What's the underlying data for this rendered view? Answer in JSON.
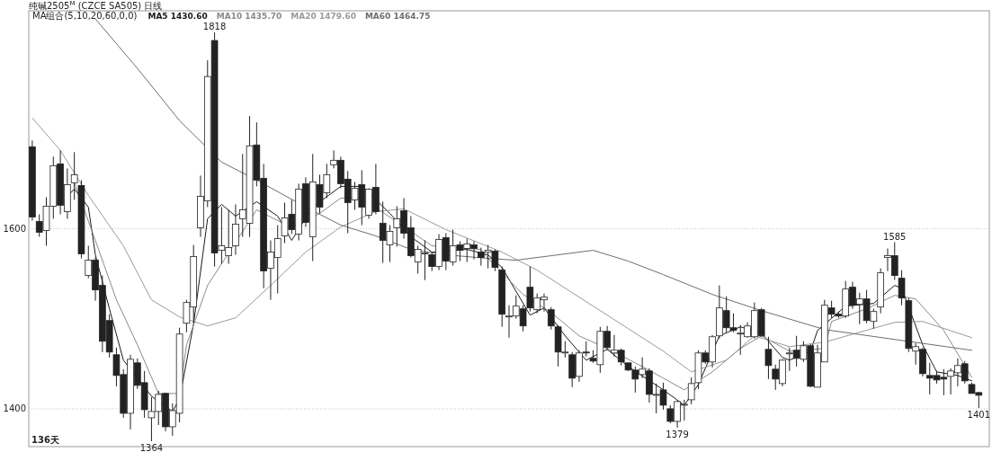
{
  "chart_data": {
    "type": "candlestick",
    "title": "纯碱2505$^{M}$ (CZCE SA505) 日线",
    "subtitle": "MA组合(5,10,20,60,0,0)",
    "categories": [
      null,
      null,
      null,
      null,
      null,
      null,
      null,
      null,
      null,
      null,
      null,
      null,
      null,
      null,
      null,
      null,
      null,
      null,
      null,
      null,
      null,
      null,
      null,
      null,
      null,
      null,
      null,
      null,
      null,
      null,
      null,
      null,
      null,
      null,
      null,
      null,
      null,
      null,
      null,
      null,
      null,
      null,
      null,
      null,
      null,
      null,
      null,
      null,
      null,
      null,
      null,
      null,
      null,
      null,
      null,
      null,
      null,
      null,
      null,
      null,
      null,
      null,
      null,
      null,
      null,
      null,
      null,
      null,
      null,
      null,
      null,
      null,
      null,
      null,
      null,
      null,
      null,
      null,
      null,
      null,
      null,
      null,
      null,
      null,
      null,
      null,
      null,
      null,
      null,
      null,
      null,
      null,
      null,
      null,
      null,
      null,
      null,
      null,
      null,
      null,
      null,
      null,
      null,
      null,
      null,
      null,
      null,
      null,
      null,
      null,
      null,
      null,
      null,
      null,
      null,
      null,
      null,
      null,
      null,
      null,
      null,
      null,
      null,
      null,
      null,
      null,
      null,
      null,
      null,
      null,
      null,
      null,
      null,
      null,
      null,
      null
    ],
    "ohlc": [
      [
        1691,
        1698,
        1609,
        1613
      ],
      [
        1608,
        1616,
        1591,
        1596
      ],
      [
        1598,
        1635,
        1581,
        1625
      ],
      [
        1625,
        1680,
        1611,
        1670
      ],
      [
        1672,
        1687,
        1616,
        1626
      ],
      [
        1619,
        1667,
        1611,
        1649
      ],
      [
        1651,
        1685,
        1632,
        1660
      ],
      [
        1648,
        1654,
        1567,
        1572
      ],
      [
        1548,
        1581,
        1545,
        1565
      ],
      [
        1565,
        1568,
        1520,
        1532
      ],
      [
        1537,
        1548,
        1463,
        1475
      ],
      [
        1498,
        1505,
        1457,
        1463
      ],
      [
        1460,
        1468,
        1425,
        1437
      ],
      [
        1438,
        1444,
        1390,
        1395
      ],
      [
        1395,
        1460,
        1377,
        1455
      ],
      [
        1451,
        1456,
        1422,
        1426
      ],
      [
        1429,
        1442,
        1390,
        1399
      ],
      [
        1390,
        1413,
        1364,
        1397
      ],
      [
        1397,
        1420,
        1382,
        1416
      ],
      [
        1417,
        1418,
        1375,
        1380
      ],
      [
        1380,
        1406,
        1370,
        1398
      ],
      [
        1395,
        1490,
        1385,
        1483
      ],
      [
        1495,
        1521,
        1485,
        1518
      ],
      [
        1513,
        1582,
        1495,
        1569
      ],
      [
        1601,
        1659,
        1591,
        1636
      ],
      [
        1631,
        1787,
        1624,
        1769
      ],
      [
        1809,
        1818,
        1558,
        1573
      ],
      [
        1576,
        1624,
        1561,
        1581
      ],
      [
        1570,
        1621,
        1561,
        1579
      ],
      [
        1581,
        1627,
        1571,
        1605
      ],
      [
        1611,
        1683,
        1591,
        1621
      ],
      [
        1606,
        1725,
        1591,
        1692
      ],
      [
        1693,
        1718,
        1647,
        1654
      ],
      [
        1656,
        1672,
        1534,
        1553
      ],
      [
        1556,
        1587,
        1521,
        1574
      ],
      [
        1568,
        1604,
        1528,
        1589
      ],
      [
        1592,
        1629,
        1584,
        1612
      ],
      [
        1616,
        1632,
        1594,
        1599
      ],
      [
        1594,
        1650,
        1587,
        1644
      ],
      [
        1650,
        1657,
        1602,
        1607
      ],
      [
        1591,
        1683,
        1564,
        1652
      ],
      [
        1649,
        1660,
        1617,
        1624
      ],
      [
        1640,
        1672,
        1634,
        1660
      ],
      [
        1671,
        1687,
        1667,
        1676
      ],
      [
        1676,
        1680,
        1645,
        1650
      ],
      [
        1655,
        1664,
        1595,
        1629
      ],
      [
        1632,
        1652,
        1621,
        1645
      ],
      [
        1649,
        1665,
        1604,
        1624
      ],
      [
        1615,
        1645,
        1611,
        1644
      ],
      [
        1646,
        1672,
        1616,
        1619
      ],
      [
        1606,
        1630,
        1562,
        1587
      ],
      [
        1582,
        1604,
        1563,
        1597
      ],
      [
        1601,
        1625,
        1580,
        1611
      ],
      [
        1620,
        1634,
        1589,
        1595
      ],
      [
        1601,
        1614,
        1568,
        1570
      ],
      [
        1563,
        1581,
        1550,
        1577
      ],
      [
        1572,
        1587,
        1543,
        1573
      ],
      [
        1571,
        1574,
        1553,
        1558
      ],
      [
        1558,
        1594,
        1554,
        1588
      ],
      [
        1590,
        1595,
        1554,
        1564
      ],
      [
        1563,
        1599,
        1559,
        1581
      ],
      [
        1582,
        1586,
        1564,
        1576
      ],
      [
        1578,
        1589,
        1563,
        1583
      ],
      [
        1582,
        1586,
        1566,
        1578
      ],
      [
        1574,
        1579,
        1559,
        1568
      ],
      [
        1574,
        1582,
        1556,
        1576
      ],
      [
        1575,
        1577,
        1553,
        1557
      ],
      [
        1554,
        1558,
        1491,
        1505
      ],
      [
        1503,
        1515,
        1479,
        1503
      ],
      [
        1503,
        1526,
        1500,
        1514
      ],
      [
        1511,
        1515,
        1486,
        1492
      ],
      [
        1535,
        1558,
        1508,
        1512
      ],
      [
        1510,
        1528,
        1506,
        1523
      ],
      [
        1521,
        1528,
        1508,
        1524
      ],
      [
        1510,
        1513,
        1488,
        1492
      ],
      [
        1491,
        1493,
        1447,
        1463
      ],
      [
        1463,
        1475,
        1457,
        1463
      ],
      [
        1460,
        1463,
        1424,
        1434
      ],
      [
        1436,
        1465,
        1430,
        1462
      ],
      [
        1463,
        1475,
        1458,
        1462
      ],
      [
        1456,
        1465,
        1451,
        1453
      ],
      [
        1449,
        1491,
        1440,
        1486
      ],
      [
        1486,
        1492,
        1465,
        1468
      ],
      [
        1462,
        1482,
        1458,
        1465
      ],
      [
        1465,
        1467,
        1448,
        1452
      ],
      [
        1451,
        1451,
        1442,
        1443
      ],
      [
        1443,
        1447,
        1418,
        1433
      ],
      [
        1438,
        1457,
        1434,
        1444
      ],
      [
        1442,
        1445,
        1407,
        1416
      ],
      [
        1416,
        1428,
        1395,
        1416
      ],
      [
        1421,
        1429,
        1399,
        1404
      ],
      [
        1400,
        1404,
        1384,
        1386
      ],
      [
        1386,
        1409,
        1379,
        1408
      ],
      [
        1404,
        1410,
        1387,
        1405
      ],
      [
        1410,
        1435,
        1405,
        1428
      ],
      [
        1429,
        1465,
        1422,
        1462
      ],
      [
        1462,
        1465,
        1450,
        1452
      ],
      [
        1452,
        1482,
        1446,
        1480
      ],
      [
        1481,
        1537,
        1478,
        1512
      ],
      [
        1509,
        1525,
        1485,
        1490
      ],
      [
        1490,
        1506,
        1485,
        1487
      ],
      [
        1484,
        1493,
        1460,
        1484
      ],
      [
        1480,
        1496,
        1479,
        1492
      ],
      [
        1480,
        1518,
        1478,
        1509
      ],
      [
        1510,
        1512,
        1480,
        1481
      ],
      [
        1466,
        1480,
        1433,
        1448
      ],
      [
        1444,
        1449,
        1421,
        1433
      ],
      [
        1428,
        1455,
        1425,
        1454
      ],
      [
        1461,
        1468,
        1442,
        1462
      ],
      [
        1465,
        1481,
        1447,
        1456
      ],
      [
        1455,
        1475,
        1452,
        1470
      ],
      [
        1470,
        1472,
        1424,
        1425
      ],
      [
        1424,
        1471,
        1424,
        1462
      ],
      [
        1452,
        1521,
        1452,
        1515
      ],
      [
        1512,
        1520,
        1501,
        1505
      ],
      [
        1505,
        1508,
        1501,
        1503
      ],
      [
        1503,
        1542,
        1501,
        1533
      ],
      [
        1535,
        1541,
        1511,
        1515
      ],
      [
        1516,
        1529,
        1494,
        1522
      ],
      [
        1522,
        1532,
        1495,
        1498
      ],
      [
        1497,
        1511,
        1489,
        1508
      ],
      [
        1513,
        1556,
        1506,
        1551
      ],
      [
        1568,
        1578,
        1553,
        1570
      ],
      [
        1570,
        1585,
        1543,
        1548
      ],
      [
        1545,
        1554,
        1515,
        1523
      ],
      [
        1520,
        1523,
        1463,
        1467
      ],
      [
        1464,
        1473,
        1449,
        1469
      ],
      [
        1466,
        1468,
        1436,
        1439
      ],
      [
        1437,
        1451,
        1416,
        1434
      ],
      [
        1437,
        1442,
        1428,
        1432
      ],
      [
        1435,
        1444,
        1415,
        1433
      ],
      [
        1436,
        1445,
        1416,
        1442
      ],
      [
        1440,
        1456,
        1425,
        1448
      ],
      [
        1450,
        1453,
        1428,
        1431
      ],
      [
        1427,
        1429,
        1417,
        1417
      ],
      [
        1418,
        1419,
        1401,
        1415
      ]
    ],
    "color": "#222222",
    "series": [
      {
        "type": "line",
        "name": "MA5 1430.60",
        "color": "#1a1a1a",
        "values": [
          null,
          null,
          null,
          null,
          null,
          1636,
          1644,
          null,
          1624,
          1571,
          null,
          1511,
          null,
          1454,
          null,
          1434,
          null,
          1414,
          null,
          null,
          1397,
          1411,
          null,
          1494,
          null,
          1611,
          null,
          1627,
          null,
          1614,
          null,
          null,
          1630,
          null,
          null,
          1614,
          null,
          1587,
          null,
          null,
          1624,
          null,
          null,
          null,
          1647,
          null,
          null,
          1647,
          null,
          null,
          null,
          1617,
          null,
          null,
          1591,
          null,
          null,
          1574,
          null,
          null,
          null,
          null,
          1577,
          null,
          null,
          1571,
          null,
          1557,
          null,
          null,
          null,
          1504,
          null,
          1512,
          null,
          null,
          1481,
          null,
          null,
          1454,
          null,
          null,
          1466,
          null,
          null,
          1447,
          null,
          null,
          null,
          null,
          1421,
          null,
          null,
          1404,
          null,
          1427,
          null,
          null,
          1481,
          null,
          null,
          1491,
          null,
          null,
          1484,
          null,
          null,
          1457,
          1454,
          null,
          null,
          1464,
          1487,
          null,
          null,
          null,
          1514,
          null,
          null,
          null,
          1517,
          null,
          null,
          1537,
          1534,
          null,
          null,
          1471,
          null,
          1441,
          null,
          null,
          1437,
          null,
          1431,
          null
        ]
      },
      {
        "type": "line",
        "name": "MA10 1435.70",
        "color": "#8a8a8a",
        "values": [
          null,
          null,
          null,
          null,
          null,
          null,
          1651,
          null,
          null,
          1587,
          null,
          null,
          1521,
          null,
          null,
          1471,
          null,
          null,
          1417,
          null,
          null,
          1417,
          1471,
          null,
          null,
          1537,
          null,
          null,
          null,
          null,
          null,
          null,
          1621,
          null,
          null,
          null,
          null,
          1601,
          null,
          null,
          null,
          1617,
          null,
          null,
          1634,
          null,
          null,
          1634,
          null,
          null,
          null,
          null,
          null,
          null,
          null,
          null,
          null,
          1581,
          null,
          null,
          null,
          null,
          null,
          null,
          1577,
          1567,
          null,
          null,
          null,
          null,
          1527,
          null,
          null,
          null,
          1507,
          null,
          null,
          null,
          1481,
          null,
          null,
          null,
          1467,
          null,
          null,
          null,
          null,
          1447,
          null,
          null,
          1434,
          null,
          null,
          1421,
          null,
          null,
          null,
          1441,
          null,
          null,
          null,
          1467,
          null,
          null,
          1481,
          null,
          null,
          null,
          1464,
          null,
          null,
          null,
          null,
          1467,
          1497,
          null,
          null,
          null,
          null,
          1511,
          null,
          null,
          null,
          1526,
          null,
          null,
          1522,
          null,
          null,
          null,
          1487,
          null,
          null,
          null,
          1435,
          null
        ]
      },
      {
        "type": "line",
        "name": "MA20 1479.60",
        "color": "#9a9a9a",
        "values": [
          1723,
          null,
          null,
          null,
          1687,
          null,
          null,
          null,
          1637,
          null,
          null,
          null,
          null,
          1581,
          null,
          null,
          null,
          1521,
          null,
          null,
          null,
          1502,
          null,
          null,
          null,
          1492,
          null,
          null,
          null,
          1501,
          null,
          null,
          null,
          null,
          1537,
          null,
          null,
          null,
          null,
          1574,
          null,
          null,
          null,
          null,
          1602,
          null,
          null,
          null,
          null,
          1619,
          null,
          null,
          null,
          1622,
          null,
          null,
          null,
          null,
          null,
          1599,
          null,
          null,
          null,
          null,
          null,
          null,
          null,
          1574,
          null,
          null,
          null,
          null,
          1554,
          null,
          null,
          null,
          null,
          null,
          1524,
          null,
          null,
          null,
          null,
          null,
          null,
          1489,
          null,
          null,
          null,
          null,
          1464,
          null,
          null,
          null,
          1441,
          null,
          null,
          null,
          null,
          1454,
          null,
          null,
          null,
          1481,
          null,
          null,
          null,
          null,
          1469,
          null,
          null,
          null,
          null,
          1474,
          null,
          null,
          null,
          null,
          null,
          null,
          null,
          null,
          null,
          1496,
          null,
          null,
          null,
          1497,
          null,
          null,
          null,
          null,
          null,
          null,
          1479,
          null
        ]
      },
      {
        "type": "line",
        "name": "MA60 1464.75",
        "color": "#6e6e6e",
        "values": [
          null,
          null,
          null,
          null,
          null,
          null,
          null,
          null,
          null,
          1833,
          null,
          null,
          null,
          null,
          null,
          1778,
          null,
          null,
          null,
          null,
          null,
          1720,
          null,
          null,
          null,
          null,
          null,
          1674,
          null,
          null,
          null,
          null,
          1654,
          null,
          null,
          null,
          null,
          null,
          null,
          1624,
          null,
          null,
          null,
          null,
          1604,
          null,
          null,
          null,
          null,
          1592,
          null,
          null,
          null,
          null,
          1577,
          null,
          null,
          null,
          null,
          1571,
          null,
          null,
          null,
          null,
          null,
          1567,
          null,
          null,
          null,
          1565,
          null,
          null,
          null,
          null,
          1570,
          null,
          null,
          null,
          null,
          null,
          1576,
          null,
          null,
          null,
          null,
          1564,
          null,
          null,
          null,
          null,
          1549,
          null,
          null,
          null,
          null,
          null,
          null,
          1527,
          null,
          null,
          null,
          null,
          null,
          null,
          1509,
          null,
          null,
          null,
          null,
          null,
          null,
          null,
          null,
          1488,
          null,
          null,
          null,
          null,
          null,
          null,
          null,
          null,
          null,
          1477,
          null,
          null,
          null,
          null,
          null,
          null,
          null,
          null,
          null,
          null,
          1465,
          null
        ]
      }
    ],
    "ylim": [
      1358,
      1842
    ],
    "yticks": [
      1400,
      1600
    ],
    "grid": "y",
    "legend": "top left",
    "tick_labels": "y",
    "annotations": [
      {
        "text": "1818",
        "y": 1818
      },
      {
        "text": "1364",
        "y": 1364
      },
      {
        "text": "1379",
        "y": 1379
      },
      {
        "text": "1585",
        "y": 1585
      },
      {
        "text": "1401",
        "y": 1401
      },
      "136天"
    ]
  }
}
